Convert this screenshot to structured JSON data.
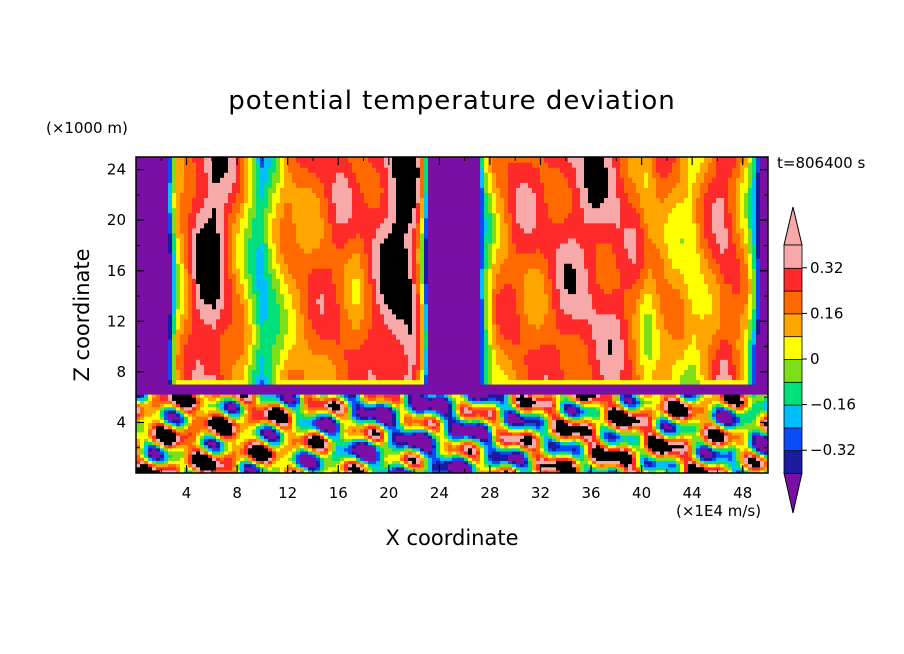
{
  "chart_data": {
    "type": "heatmap",
    "title": "potential temperature deviation",
    "xlabel": "X coordinate",
    "ylabel": "Z coordinate",
    "x_unit": "(×1E4 m/s)",
    "y_unit": "(×1000 m)",
    "time_label": "t=806400 s",
    "xlim": [
      0,
      50
    ],
    "ylim": [
      0,
      25
    ],
    "x_ticks": [
      4,
      8,
      12,
      16,
      20,
      24,
      28,
      32,
      36,
      40,
      44,
      48
    ],
    "y_ticks": [
      4,
      8,
      12,
      16,
      20,
      24
    ],
    "colorbar": {
      "levels": [
        -0.4,
        -0.32,
        -0.24,
        -0.16,
        -0.08,
        0,
        0.08,
        0.16,
        0.24,
        0.32,
        0.4
      ],
      "labels": [
        "0.32",
        "0.16",
        "0",
        "−0.16",
        "−0.32"
      ],
      "label_values": [
        0.32,
        0.16,
        0,
        -0.16,
        -0.32
      ],
      "colors": [
        "#7a0fa6",
        "#1c1aa0",
        "#0a4cf6",
        "#00bfff",
        "#00e07a",
        "#7ddf1a",
        "#ffff00",
        "#ffa500",
        "#ff6a00",
        "#ff2a2a",
        "#f7a8a8"
      ]
    },
    "upper_layer": {
      "z_range": [
        7,
        25
      ],
      "x_profile": [
        {
          "x": 0,
          "v": -0.5
        },
        {
          "x": 2.5,
          "v": -0.5
        },
        {
          "x": 3.2,
          "v": 0.05
        },
        {
          "x": 4,
          "v": 0.2
        },
        {
          "x": 5,
          "v": 0.36
        },
        {
          "x": 6.2,
          "v": 0.42
        },
        {
          "x": 7.5,
          "v": 0.24
        },
        {
          "x": 8.5,
          "v": 0.1
        },
        {
          "x": 9.3,
          "v": -0.08
        },
        {
          "x": 10,
          "v": -0.2
        },
        {
          "x": 10.8,
          "v": -0.05
        },
        {
          "x": 12,
          "v": 0.14
        },
        {
          "x": 14,
          "v": 0.2
        },
        {
          "x": 16,
          "v": 0.25
        },
        {
          "x": 17.5,
          "v": 0.18
        },
        {
          "x": 19,
          "v": 0.3
        },
        {
          "x": 20.5,
          "v": 0.42
        },
        {
          "x": 21.8,
          "v": 0.42
        },
        {
          "x": 22.5,
          "v": 0.2
        },
        {
          "x": 23.2,
          "v": -0.5
        },
        {
          "x": 27,
          "v": -0.5
        },
        {
          "x": 27.6,
          "v": -0.1
        },
        {
          "x": 28.5,
          "v": 0.14
        },
        {
          "x": 30,
          "v": 0.24
        },
        {
          "x": 32,
          "v": 0.22
        },
        {
          "x": 34,
          "v": 0.3
        },
        {
          "x": 36,
          "v": 0.32
        },
        {
          "x": 38,
          "v": 0.3
        },
        {
          "x": 39.5,
          "v": 0.22
        },
        {
          "x": 40.5,
          "v": 0.08
        },
        {
          "x": 41.5,
          "v": 0.18
        },
        {
          "x": 43,
          "v": 0.1
        },
        {
          "x": 44,
          "v": 0.02
        },
        {
          "x": 45,
          "v": 0.14
        },
        {
          "x": 46.5,
          "v": 0.3
        },
        {
          "x": 47.5,
          "v": 0.22
        },
        {
          "x": 48.3,
          "v": 0.08
        },
        {
          "x": 49,
          "v": -0.2
        },
        {
          "x": 49.4,
          "v": -0.5
        },
        {
          "x": 50,
          "v": -0.5
        }
      ]
    },
    "lower_layer": {
      "z_range": [
        0,
        7
      ],
      "pattern": "turbulent mixed field of positive and negative deviations"
    }
  }
}
